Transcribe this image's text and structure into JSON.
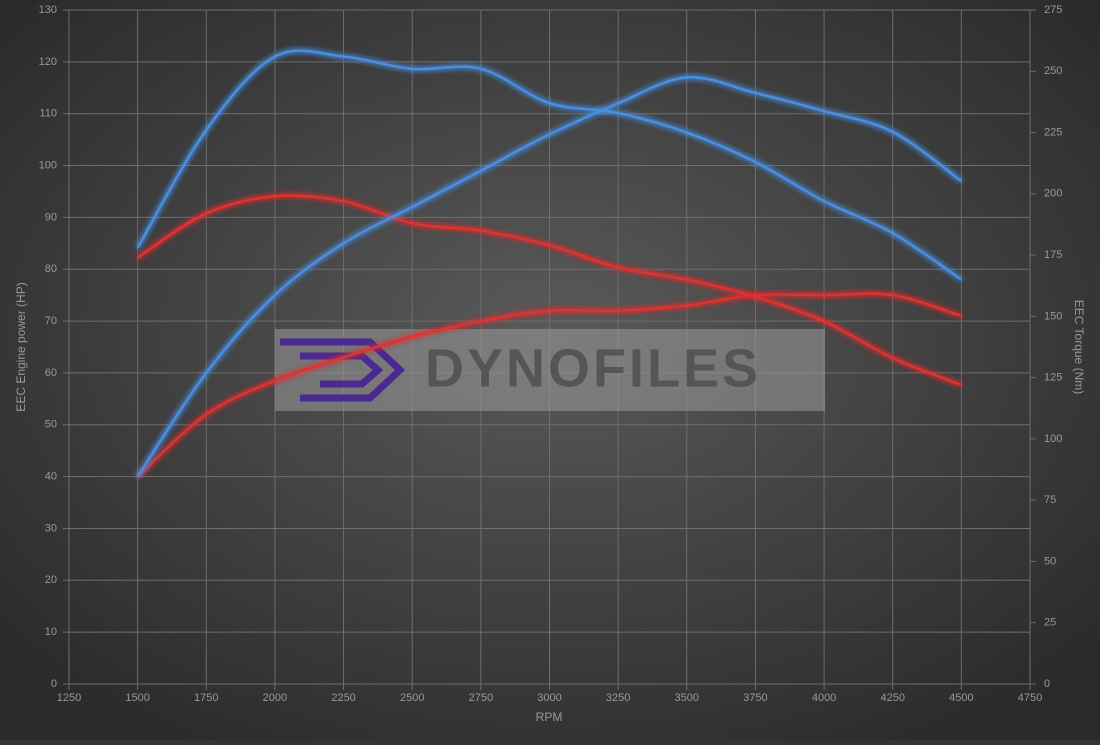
{
  "chart_data": {
    "type": "line",
    "x_label": "RPM",
    "y_label": "EEC Engine power (HP)",
    "y2_label": "EEC Torque (Nm)",
    "watermark": "DYNOFILES",
    "x": [
      1500,
      1750,
      2000,
      2250,
      2500,
      2750,
      3000,
      3250,
      3500,
      3750,
      4000,
      4250,
      4500
    ],
    "series": [
      {
        "color": "#e03030",
        "values": [
          40,
          52,
          58.5,
          63,
          67,
          70,
          72,
          72,
          73,
          75,
          75,
          75,
          71
        ]
      },
      {
        "color": "#e03030",
        "axis": "y2",
        "values": [
          174,
          192,
          199,
          197,
          188,
          185,
          179,
          170,
          165,
          158,
          148,
          133,
          122
        ]
      },
      {
        "color": "#4a8ee0",
        "values": [
          40,
          60,
          75,
          85,
          92,
          99,
          106,
          112,
          117,
          114,
          110.5,
          106.5,
          97
        ]
      },
      {
        "color": "#4a8ee0",
        "axis": "y2",
        "values": [
          178,
          226,
          256,
          256,
          251,
          251,
          237,
          233,
          225,
          213,
          197,
          184,
          165
        ]
      }
    ],
    "xlim": [
      1250,
      4750
    ],
    "xticks": [
      1250,
      1500,
      1750,
      2000,
      2250,
      2500,
      2750,
      3000,
      3250,
      3500,
      3750,
      4000,
      4250,
      4500,
      4750
    ],
    "ylim": [
      0,
      130
    ],
    "yticks": [
      0,
      10,
      20,
      30,
      40,
      50,
      60,
      70,
      80,
      90,
      100,
      110,
      120,
      130
    ],
    "y2lim": [
      0,
      275
    ],
    "y2ticks": [
      0,
      25,
      50,
      75,
      100,
      125,
      150,
      175,
      200,
      225,
      250,
      275
    ],
    "grid": true
  }
}
